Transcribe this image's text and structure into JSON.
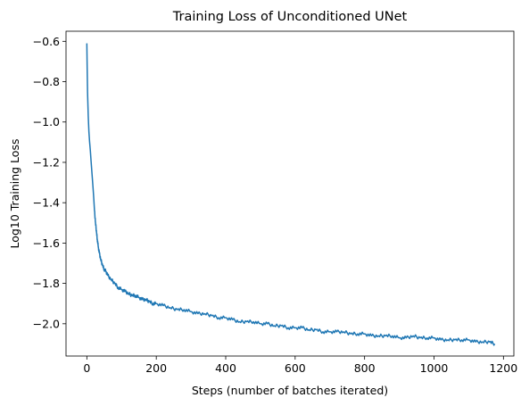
{
  "chart_data": {
    "type": "line",
    "title": "Training Loss of Unconditioned UNet",
    "xlabel": "Steps (number of batches iterated)",
    "ylabel": "Log10 Training Loss",
    "xlim": [
      -60,
      1230
    ],
    "ylim": [
      -2.16,
      -0.55
    ],
    "xticks": [
      0,
      200,
      400,
      600,
      800,
      1000,
      1200
    ],
    "yticks": [
      -2.0,
      -1.8,
      -1.6,
      -1.4,
      -1.2,
      -1.0,
      -0.8,
      -0.6
    ],
    "ytick_labels": [
      "−2.0",
      "−1.8",
      "−1.6",
      "−1.4",
      "−1.2",
      "−1.0",
      "−0.8",
      "−0.6"
    ],
    "grid": false,
    "legend": "none",
    "series": [
      {
        "color": "#1f77b4",
        "x": [
          0,
          1,
          2,
          4,
          6,
          8,
          10,
          12,
          15,
          18,
          20,
          22,
          25,
          28,
          30,
          33,
          36,
          40,
          45,
          50,
          55,
          60,
          70,
          80,
          90,
          100,
          110,
          120,
          130,
          140,
          150,
          160,
          170,
          180,
          190,
          200,
          220,
          240,
          260,
          280,
          300,
          320,
          340,
          360,
          380,
          400,
          420,
          440,
          460,
          480,
          500,
          520,
          540,
          560,
          580,
          600,
          620,
          640,
          660,
          680,
          700,
          720,
          740,
          760,
          780,
          800,
          820,
          840,
          860,
          880,
          900,
          920,
          940,
          960,
          980,
          1000,
          1020,
          1040,
          1060,
          1080,
          1100,
          1120,
          1140,
          1160,
          1175
        ],
        "y": [
          -0.61,
          -0.74,
          -0.85,
          -0.97,
          -1.05,
          -1.1,
          -1.14,
          -1.19,
          -1.26,
          -1.33,
          -1.38,
          -1.44,
          -1.5,
          -1.55,
          -1.58,
          -1.62,
          -1.65,
          -1.68,
          -1.71,
          -1.73,
          -1.74,
          -1.76,
          -1.78,
          -1.8,
          -1.82,
          -1.83,
          -1.84,
          -1.85,
          -1.86,
          -1.86,
          -1.87,
          -1.88,
          -1.88,
          -1.89,
          -1.9,
          -1.9,
          -1.91,
          -1.92,
          -1.93,
          -1.93,
          -1.94,
          -1.95,
          -1.95,
          -1.96,
          -1.97,
          -1.97,
          -1.98,
          -1.99,
          -1.99,
          -1.99,
          -2.0,
          -2.0,
          -2.01,
          -2.01,
          -2.02,
          -2.02,
          -2.02,
          -2.03,
          -2.03,
          -2.04,
          -2.04,
          -2.04,
          -2.04,
          -2.05,
          -2.05,
          -2.05,
          -2.06,
          -2.06,
          -2.06,
          -2.06,
          -2.07,
          -2.07,
          -2.06,
          -2.07,
          -2.07,
          -2.07,
          -2.08,
          -2.08,
          -2.08,
          -2.08,
          -2.08,
          -2.09,
          -2.09,
          -2.09,
          -2.1
        ]
      }
    ]
  }
}
